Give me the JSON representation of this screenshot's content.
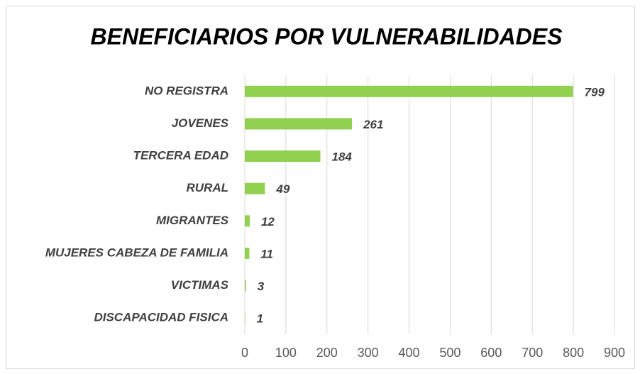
{
  "chart_data": {
    "type": "bar",
    "orientation": "horizontal",
    "title": "BENEFICIARIOS POR VULNERABILIDADES",
    "categories": [
      "NO REGISTRA",
      "JOVENES",
      "TERCERA EDAD",
      "RURAL",
      "MIGRANTES",
      "MUJERES CABEZA DE FAMILIA",
      "VICTIMAS",
      "DISCAPACIDAD FISICA"
    ],
    "values": [
      799,
      261,
      184,
      49,
      12,
      11,
      3,
      1
    ],
    "color": "#92d050",
    "xlim": [
      0,
      900
    ],
    "xticks": [
      0,
      100,
      200,
      300,
      400,
      500,
      600,
      700,
      800,
      900
    ],
    "grid": true
  }
}
